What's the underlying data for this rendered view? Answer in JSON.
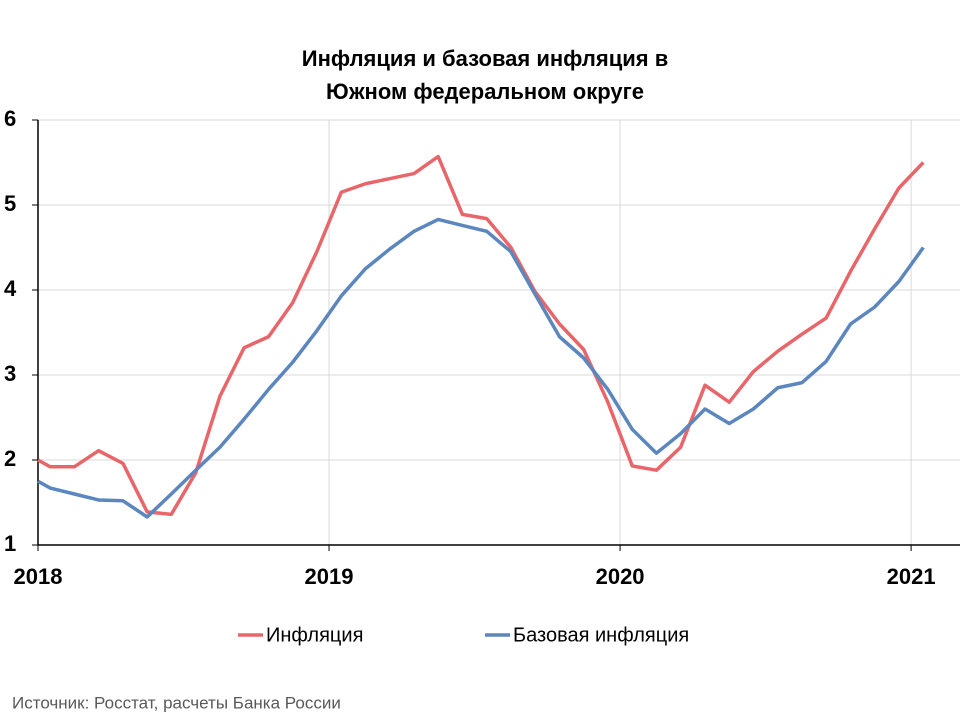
{
  "chart_data": {
    "type": "line",
    "title": [
      "Инфляция и базовая инфляция в",
      "Южном федеральном округе"
    ],
    "source": "Источник: Росстат, расчеты Банка России",
    "x": [
      2018,
      2018.042,
      2018.125,
      2018.208,
      2018.292,
      2018.375,
      2018.458,
      2018.542,
      2018.625,
      2018.708,
      2018.792,
      2018.875,
      2018.958,
      2019.042,
      2019.125,
      2019.208,
      2019.292,
      2019.375,
      2019.458,
      2019.542,
      2019.625,
      2019.708,
      2019.792,
      2019.875,
      2019.958,
      2020.042,
      2020.125,
      2020.208,
      2020.292,
      2020.375,
      2020.458,
      2020.542,
      2020.625,
      2020.708,
      2020.792,
      2020.875,
      2020.958,
      2021.042
    ],
    "series": [
      {
        "name": "Инфляция",
        "color": "#e8666a",
        "values": [
          2.0,
          1.92,
          1.92,
          2.11,
          1.96,
          1.39,
          1.36,
          1.85,
          2.75,
          3.32,
          3.45,
          3.85,
          4.45,
          5.15,
          5.25,
          5.31,
          5.37,
          5.57,
          4.89,
          4.84,
          4.5,
          3.98,
          3.6,
          3.3,
          2.68,
          1.93,
          1.88,
          2.15,
          2.88,
          2.68,
          3.04,
          3.28,
          3.48,
          3.67,
          4.22,
          4.72,
          5.2,
          5.5
        ]
      },
      {
        "name": "Базовая инфляция",
        "color": "#5b86be",
        "values": [
          1.75,
          1.67,
          1.6,
          1.53,
          1.52,
          1.33,
          1.6,
          1.88,
          2.15,
          2.48,
          2.83,
          3.15,
          3.52,
          3.93,
          4.25,
          4.48,
          4.69,
          4.83,
          4.76,
          4.69,
          4.45,
          3.95,
          3.45,
          3.2,
          2.83,
          2.36,
          2.08,
          2.31,
          2.6,
          2.43,
          2.6,
          2.85,
          2.91,
          3.16,
          3.6,
          3.8,
          4.1,
          4.5
        ]
      }
    ],
    "xlim": [
      2018,
      2021.168
    ],
    "xticks": [
      2018,
      2019,
      2020,
      2021
    ],
    "ylim": [
      1,
      6
    ],
    "yticks": [
      1,
      2,
      3,
      4,
      5,
      6
    ],
    "grid": true
  }
}
